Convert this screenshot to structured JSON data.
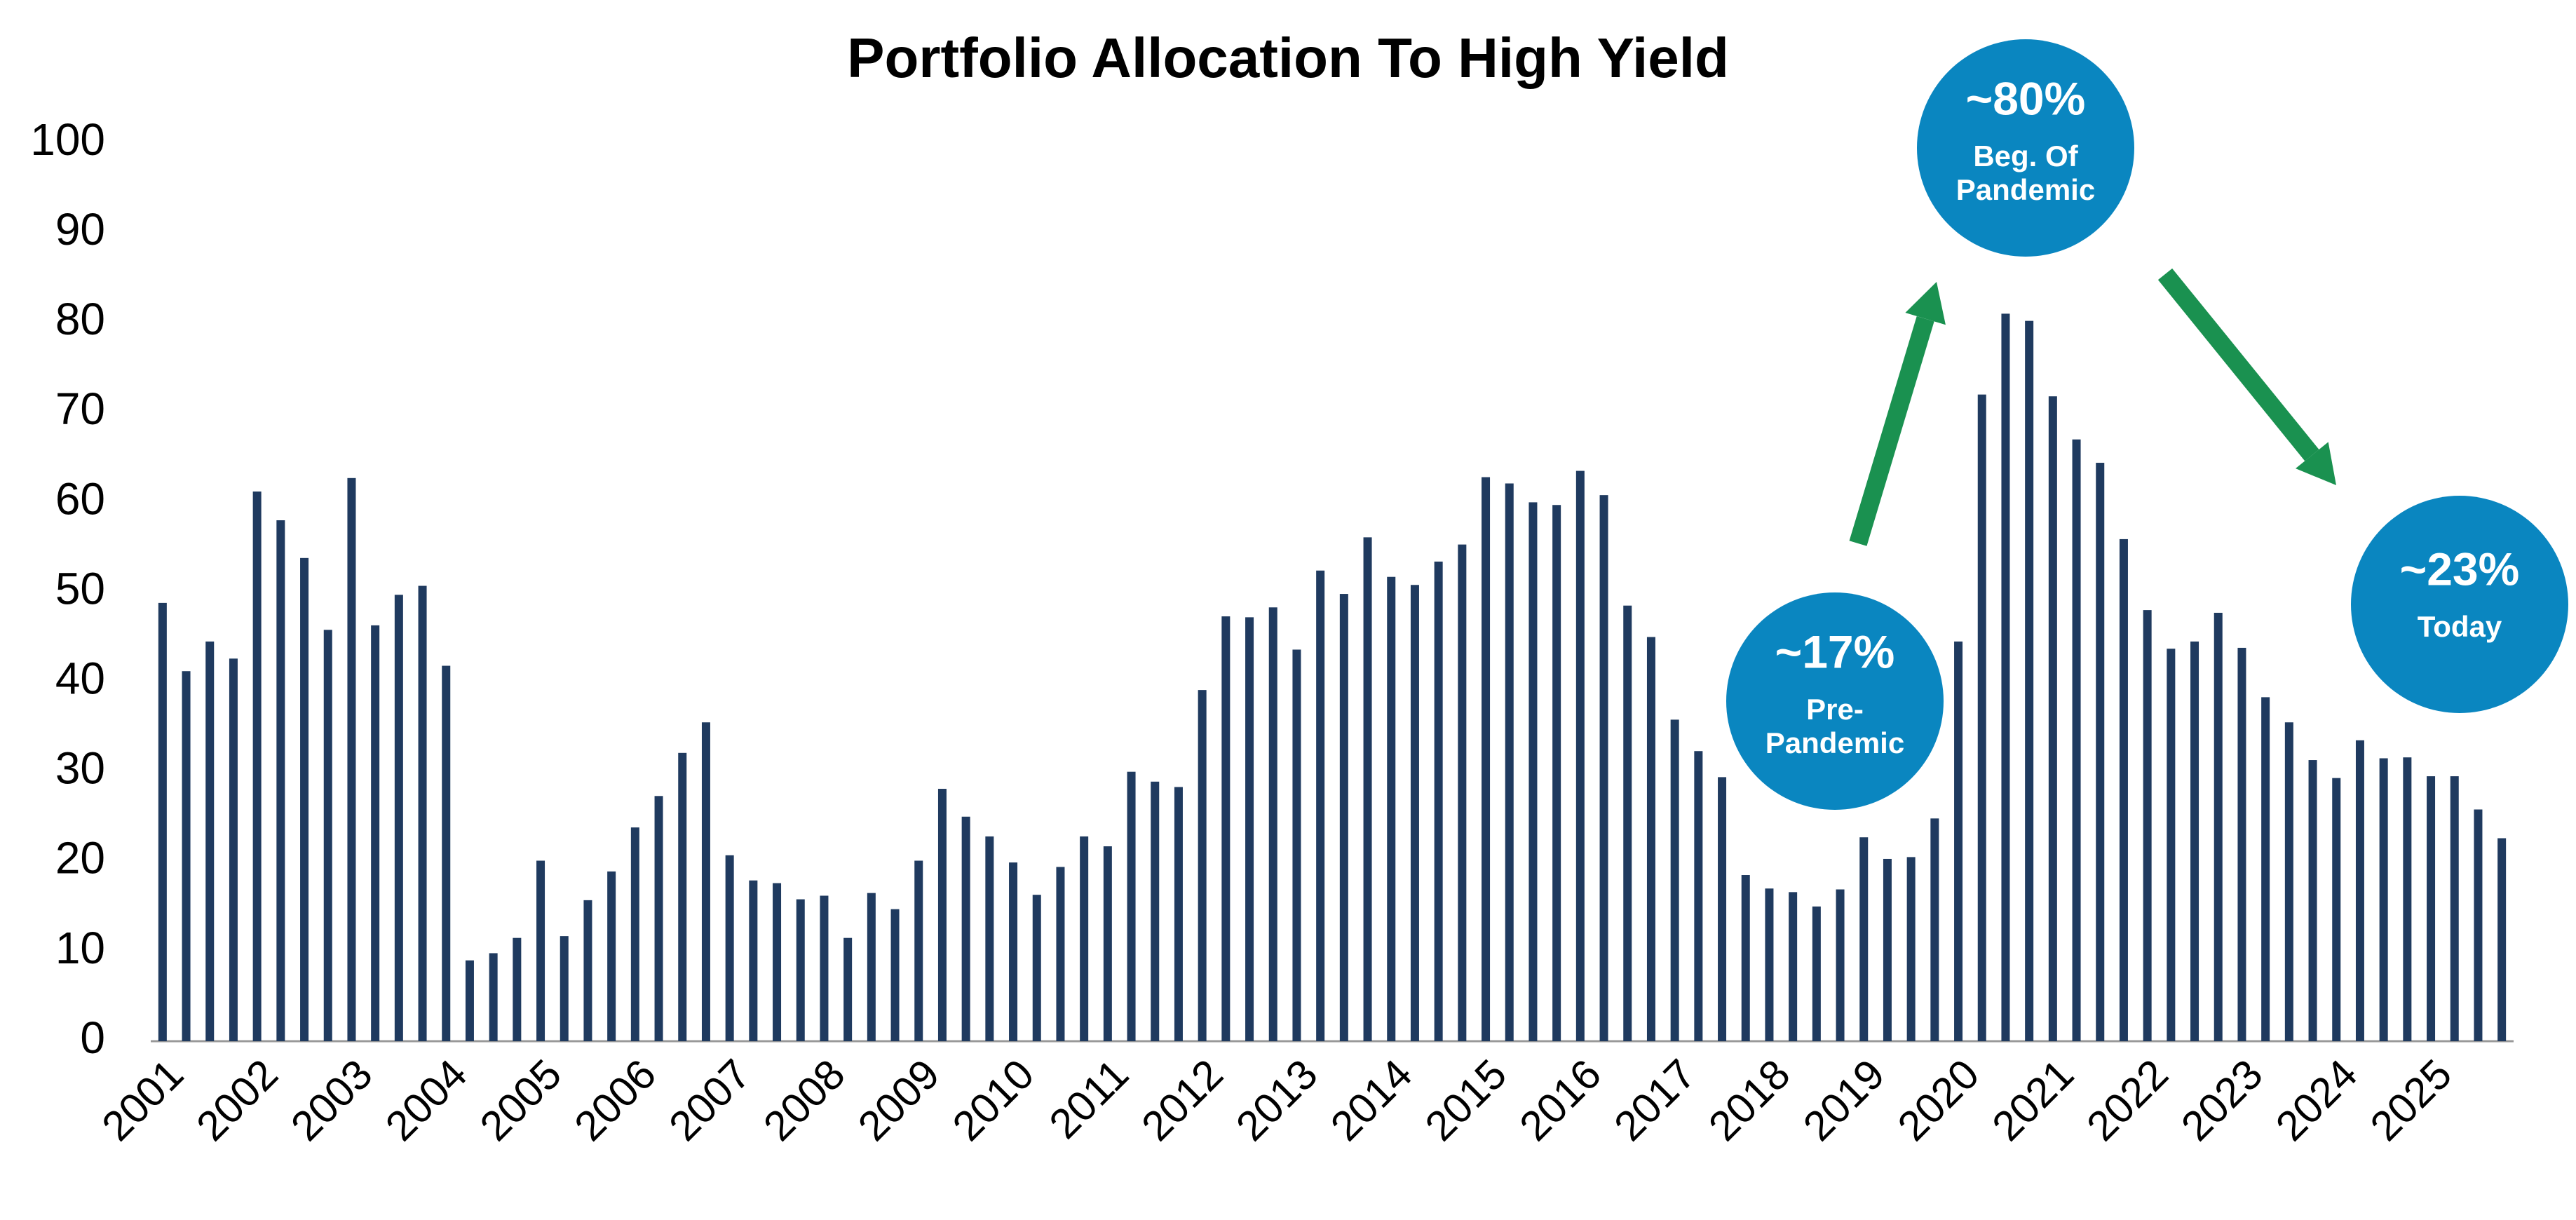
{
  "chart_data": {
    "type": "bar",
    "title": "Portfolio Allocation To High Yield",
    "categories": [
      "2001",
      null,
      null,
      null,
      "2002",
      null,
      null,
      null,
      "2003",
      null,
      null,
      null,
      "2004",
      null,
      null,
      null,
      "2005",
      null,
      null,
      null,
      "2006",
      null,
      null,
      null,
      "2007",
      null,
      null,
      null,
      "2008",
      null,
      null,
      null,
      "2009",
      null,
      null,
      null,
      "2010",
      null,
      null,
      null,
      "2011",
      null,
      null,
      null,
      "2012",
      null,
      null,
      null,
      "2013",
      null,
      null,
      null,
      "2014",
      null,
      null,
      null,
      "2015",
      null,
      null,
      null,
      "2016",
      null,
      null,
      null,
      "2017",
      null,
      null,
      null,
      "2018",
      null,
      null,
      null,
      "2019",
      null,
      null,
      null,
      "2020",
      null,
      null,
      null,
      "2021",
      null,
      null,
      null,
      "2022",
      null,
      null,
      null,
      "2023",
      null,
      null,
      null,
      "2024",
      null,
      null,
      null,
      "2025",
      null,
      null,
      null
    ],
    "values": [
      48.8,
      41.2,
      44.5,
      42.6,
      61.2,
      58,
      53.8,
      45.8,
      62.7,
      46.3,
      49.7,
      50.7,
      41.8,
      9,
      9.8,
      11.5,
      20.1,
      11.7,
      15.7,
      18.9,
      23.8,
      27.3,
      32.1,
      35.5,
      20.7,
      17.9,
      17.6,
      15.8,
      16.2,
      11.5,
      16.5,
      14.7,
      20.1,
      28.1,
      25,
      22.8,
      19.9,
      16.3,
      19.4,
      22.8,
      21.7,
      30,
      28.9,
      28.3,
      39.1,
      47.3,
      47.2,
      48.3,
      43.6,
      52.4,
      49.8,
      56.1,
      51.7,
      50.8,
      53.4,
      55.3,
      62.8,
      62.1,
      60,
      59.7,
      63.5,
      60.8,
      48.5,
      45,
      35.8,
      32.3,
      29.4,
      18.5,
      17,
      16.6,
      15,
      16.9,
      22.7,
      20.3,
      20.5,
      24.8,
      44.5,
      72,
      81,
      80.2,
      71.8,
      67,
      64.4,
      55.9,
      48,
      43.7,
      44.5,
      47.7,
      43.8,
      38.3,
      35.5,
      31.3,
      29.3,
      33.5,
      31.5,
      31.6,
      29.5,
      29.5,
      25.8,
      22.6
    ],
    "color": "#1f3a5f",
    "ylim": [
      0,
      100
    ],
    "yticks": [
      0,
      10,
      20,
      30,
      40,
      50,
      60,
      70,
      80,
      90,
      100
    ],
    "annotations": [
      {
        "headline": "~17%",
        "lines": [
          "Pre-",
          "Pandemic"
        ]
      },
      {
        "headline": "~80%",
        "lines": [
          "Beg. Of",
          "Pandemic"
        ]
      },
      {
        "headline": "~23%",
        "lines": [
          "Today"
        ]
      }
    ],
    "annotation_color": "#0a86c0",
    "arrow_color": "#1a9150"
  }
}
